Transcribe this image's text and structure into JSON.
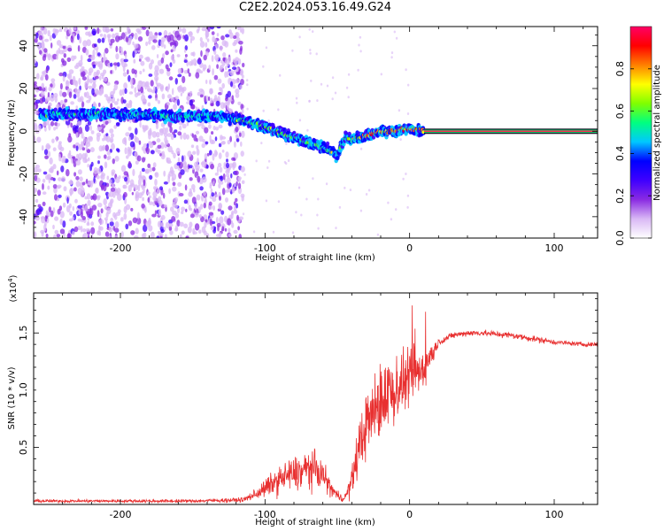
{
  "title": "C2E2.2024.053.16.49.G24",
  "chart_data": [
    {
      "type": "heatmap",
      "name": "spectrogram",
      "xlabel": "Height of straight line (km)",
      "ylabel": "Frequency (Hz)",
      "xlim": [
        -260,
        130
      ],
      "ylim": [
        -50,
        49
      ],
      "x_ticks": [
        -200,
        -100,
        0,
        100
      ],
      "y_ticks": [
        -40,
        -20,
        0,
        20,
        40
      ],
      "grid": false,
      "colorbar": {
        "label": "Normalized spectral amplitude",
        "range": [
          0,
          1
        ],
        "ticks": [
          0.0,
          0.2,
          0.4,
          0.6,
          0.8
        ],
        "colors": [
          "#ffffff",
          "#d9b8f5",
          "#8a2be2",
          "#3f00ff",
          "#0000ff",
          "#00c8ff",
          "#00ff80",
          "#80ff00",
          "#ffff00",
          "#ff8000",
          "#ff0000",
          "#ff0066"
        ]
      },
      "ridge": {
        "x": [
          -255,
          -220,
          -190,
          -160,
          -130,
          -115,
          -105,
          -95,
          -85,
          -75,
          -65,
          -55,
          -50,
          -45,
          -40,
          -35,
          -30,
          -25,
          -20,
          -15,
          -10,
          -5,
          0,
          5,
          10,
          130
        ],
        "frequency": [
          8,
          8,
          8,
          7,
          7,
          5,
          3,
          1,
          -2,
          -4,
          -6,
          -9,
          -12,
          -3,
          -4,
          -3,
          -2,
          -1,
          0,
          0,
          0,
          1,
          1,
          1,
          0,
          0
        ]
      }
    },
    {
      "type": "line",
      "name": "snr",
      "xlabel": "Height of straight line (km)",
      "ylabel": "SNR (10 * v/v)",
      "y_multiplier": "(x10",
      "y_multiplier_exp": "4",
      "xlim": [
        -260,
        130
      ],
      "ylim": [
        0,
        1.85
      ],
      "x_ticks": [
        -200,
        -100,
        0,
        100
      ],
      "y_ticks": [
        0.5,
        1.0,
        1.5
      ],
      "y_tick_labels": [
        "0.5",
        "1.0",
        "1.5"
      ],
      "line_color": "#e83030",
      "grid": false,
      "envelope": {
        "x": [
          -260,
          -200,
          -150,
          -115,
          -105,
          -95,
          -85,
          -75,
          -70,
          -65,
          -60,
          -55,
          -50,
          -45,
          -40,
          -35,
          -30,
          -25,
          -20,
          -15,
          -10,
          -5,
          0,
          5,
          10,
          15,
          20,
          30,
          40,
          50,
          60,
          70,
          80,
          90,
          100,
          110,
          120,
          130
        ],
        "mean": [
          0.03,
          0.03,
          0.03,
          0.04,
          0.1,
          0.18,
          0.25,
          0.28,
          0.32,
          0.3,
          0.26,
          0.15,
          0.08,
          0.05,
          0.2,
          0.5,
          0.7,
          0.8,
          0.9,
          1.0,
          1.0,
          1.05,
          1.1,
          1.15,
          1.2,
          1.3,
          1.42,
          1.48,
          1.5,
          1.5,
          1.49,
          1.48,
          1.46,
          1.44,
          1.42,
          1.41,
          1.4,
          1.4
        ],
        "spread": [
          0.02,
          0.02,
          0.02,
          0.03,
          0.08,
          0.15,
          0.2,
          0.25,
          0.25,
          0.22,
          0.18,
          0.12,
          0.06,
          0.05,
          0.18,
          0.35,
          0.4,
          0.45,
          0.5,
          0.5,
          0.45,
          0.4,
          0.35,
          0.35,
          0.3,
          0.15,
          0.05,
          0.04,
          0.04,
          0.04,
          0.04,
          0.04,
          0.04,
          0.04,
          0.03,
          0.03,
          0.03,
          0.03
        ]
      }
    }
  ]
}
